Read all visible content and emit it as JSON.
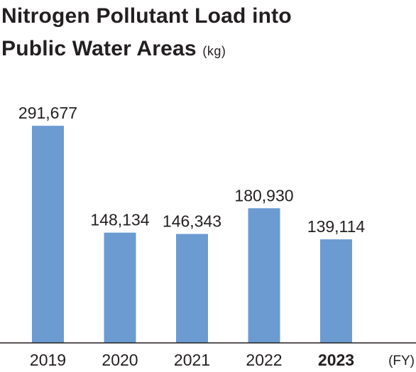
{
  "title_line1": "Nitrogen Pollutant Load into",
  "title_line2": "Public Water Areas",
  "title_unit": "(kg)",
  "x_unit": "(FY)",
  "bar_color": "#6b9bd1",
  "axis_color": "#231f20",
  "chart_data": {
    "type": "bar",
    "title": "Nitrogen Pollutant Load into Public Water Areas",
    "ylabel": "(kg)",
    "xlabel": "(FY)",
    "categories": [
      "2019",
      "2020",
      "2021",
      "2022",
      "2023"
    ],
    "values": [
      291677,
      148134,
      146343,
      180930,
      139114
    ],
    "value_labels": [
      "291,677",
      "148,134",
      "146,343",
      "180,930",
      "139,114"
    ],
    "highlight_category": "2023",
    "ylim": [
      0,
      330000
    ],
    "grid": false,
    "legend": "none"
  }
}
